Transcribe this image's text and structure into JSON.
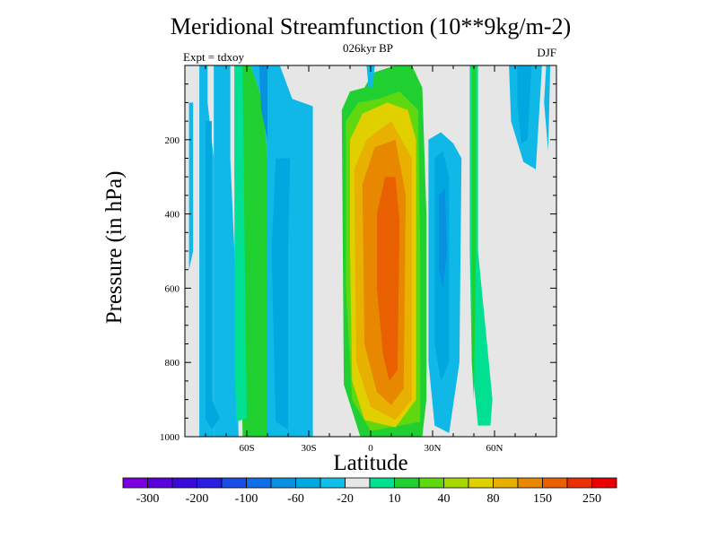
{
  "chart_data": {
    "type": "heatmap",
    "title": "Meridional Streamfunction (10**9kg/m-2)",
    "subtitle": "026kyr BP",
    "left_annotation": "Expt = tdxoy",
    "right_annotation": "DJF",
    "xlabel": "Latitude",
    "ylabel": "Pressure (in hPa)",
    "x_range": [
      -90,
      90
    ],
    "y_range": [
      0,
      1000
    ],
    "y_reversed": true,
    "x_ticks": [
      {
        "value": -60,
        "label": "60S"
      },
      {
        "value": -30,
        "label": "30S"
      },
      {
        "value": 0,
        "label": "0"
      },
      {
        "value": 30,
        "label": "30N"
      },
      {
        "value": 60,
        "label": "60N"
      }
    ],
    "y_ticks": [
      {
        "value": 200,
        "label": "200"
      },
      {
        "value": 400,
        "label": "400"
      },
      {
        "value": 600,
        "label": "600"
      },
      {
        "value": 800,
        "label": "800"
      },
      {
        "value": 1000,
        "label": "1000"
      }
    ],
    "background_color": "#e6e6e6",
    "colorbar": {
      "colors": [
        "#7b00e0",
        "#5a00d8",
        "#3a0ad8",
        "#2a1ee0",
        "#1a4ee6",
        "#0f6fe6",
        "#0a90e0",
        "#00a8e0",
        "#10c0e8",
        "#e6e6e6",
        "#00e090",
        "#20d030",
        "#60d810",
        "#a8d800",
        "#e0d000",
        "#e8b000",
        "#e88800",
        "#e86000",
        "#e83000",
        "#e80000"
      ],
      "labels": [
        {
          "after_box": 1,
          "text": "-300"
        },
        {
          "after_box": 3,
          "text": "-200"
        },
        {
          "after_box": 5,
          "text": "-100"
        },
        {
          "after_box": 7,
          "text": "-60"
        },
        {
          "after_box": 9,
          "text": "-20"
        },
        {
          "after_box": 11,
          "text": "10"
        },
        {
          "after_box": 13,
          "text": "40"
        },
        {
          "after_box": 15,
          "text": "80"
        },
        {
          "after_box": 17,
          "text": "150"
        },
        {
          "after_box": 19,
          "text": "250"
        }
      ]
    },
    "contour_bands": [
      {
        "color": "#10b8e8",
        "points": [
          [
            -83,
            0
          ],
          [
            -79,
            0
          ],
          [
            -79,
            100
          ],
          [
            -76,
            250
          ],
          [
            -76,
            1000
          ],
          [
            -83,
            1000
          ]
        ]
      },
      {
        "color": "#10b8e8",
        "points": [
          [
            -76,
            0
          ],
          [
            -68,
            0
          ],
          [
            -68,
            250
          ],
          [
            -66,
            500
          ],
          [
            -64,
            1000
          ],
          [
            -76,
            1000
          ]
        ]
      },
      {
        "color": "#00a8e0",
        "points": [
          [
            -80,
            150
          ],
          [
            -77,
            150
          ],
          [
            -77,
            900
          ],
          [
            -73,
            950
          ],
          [
            -77,
            980
          ],
          [
            -80,
            950
          ]
        ]
      },
      {
        "color": "#e6e6e6",
        "points": [
          [
            -88,
            20
          ],
          [
            -84,
            20
          ],
          [
            -84,
            650
          ],
          [
            -88,
            680
          ]
        ]
      },
      {
        "color": "#10b8e8",
        "points": [
          [
            -88,
            100
          ],
          [
            -86,
            100
          ],
          [
            -86,
            500
          ],
          [
            -88,
            550
          ]
        ]
      },
      {
        "color": "#20d030",
        "points": [
          [
            -66,
            0
          ],
          [
            -58,
            0
          ],
          [
            -52,
            100
          ],
          [
            -50,
            250
          ],
          [
            -50,
            1000
          ],
          [
            -62,
            1000
          ],
          [
            -63,
            750
          ],
          [
            -66,
            300
          ]
        ]
      },
      {
        "color": "#00e090",
        "points": [
          [
            -66,
            0
          ],
          [
            -62,
            0
          ],
          [
            -61,
            500
          ],
          [
            -60,
            950
          ],
          [
            -65,
            960
          ],
          [
            -66,
            800
          ]
        ]
      },
      {
        "color": "#10b8e8",
        "points": [
          [
            -58,
            0
          ],
          [
            -44,
            0
          ],
          [
            -38,
            90
          ],
          [
            -28,
            110
          ],
          [
            -28,
            1000
          ],
          [
            -50,
            1000
          ],
          [
            -50,
            250
          ],
          [
            -52,
            100
          ]
        ]
      },
      {
        "color": "#00a8e0",
        "points": [
          [
            -46,
            250
          ],
          [
            -39,
            250
          ],
          [
            -40,
            500
          ],
          [
            -40,
            980
          ],
          [
            -46,
            960
          ],
          [
            -48,
            500
          ]
        ]
      },
      {
        "color": "#0a90e0",
        "points": [
          [
            -54,
            0
          ],
          [
            -50,
            0
          ],
          [
            -50,
            200
          ],
          [
            -53,
            120
          ]
        ]
      },
      {
        "color": "#10b8e8",
        "points": [
          [
            -36,
            300
          ],
          [
            -30,
            300
          ],
          [
            -30,
            900
          ],
          [
            -36,
            880
          ]
        ]
      },
      {
        "color": "#20d030",
        "points": [
          [
            -14,
            120
          ],
          [
            -10,
            70
          ],
          [
            -3,
            60
          ],
          [
            1,
            20
          ],
          [
            12,
            0
          ],
          [
            20,
            0
          ],
          [
            25,
            60
          ],
          [
            27,
            400
          ],
          [
            27,
            900
          ],
          [
            25,
            1000
          ],
          [
            -5,
            1000
          ],
          [
            -13,
            860
          ]
        ]
      },
      {
        "color": "#60d810",
        "points": [
          [
            -12,
            150
          ],
          [
            -6,
            100
          ],
          [
            4,
            90
          ],
          [
            14,
            70
          ],
          [
            23,
            120
          ],
          [
            24,
            500
          ],
          [
            24,
            960
          ],
          [
            0,
            985
          ],
          [
            -9,
            900
          ],
          [
            -12,
            600
          ]
        ]
      },
      {
        "color": "#e0d000",
        "points": [
          [
            -10,
            200
          ],
          [
            -4,
            130
          ],
          [
            8,
            100
          ],
          [
            18,
            120
          ],
          [
            22,
            200
          ],
          [
            22,
            900
          ],
          [
            12,
            975
          ],
          [
            -3,
            955
          ],
          [
            -9,
            850
          ],
          [
            -10,
            500
          ]
        ]
      },
      {
        "color": "#e8b000",
        "points": [
          [
            -8,
            280
          ],
          [
            -2,
            200
          ],
          [
            10,
            150
          ],
          [
            20,
            250
          ],
          [
            20,
            900
          ],
          [
            12,
            955
          ],
          [
            0,
            920
          ],
          [
            -7,
            800
          ]
        ]
      },
      {
        "color": "#e88800",
        "points": [
          [
            -4,
            320
          ],
          [
            2,
            220
          ],
          [
            12,
            200
          ],
          [
            17,
            350
          ],
          [
            16,
            870
          ],
          [
            10,
            915
          ],
          [
            3,
            880
          ],
          [
            -3,
            750
          ]
        ]
      },
      {
        "color": "#e86000",
        "points": [
          [
            3,
            400
          ],
          [
            7,
            300
          ],
          [
            12,
            300
          ],
          [
            14,
            420
          ],
          [
            13,
            820
          ],
          [
            9,
            850
          ],
          [
            6,
            780
          ],
          [
            3,
            600
          ]
        ]
      },
      {
        "color": "#10b8e8",
        "points": [
          [
            28,
            200
          ],
          [
            34,
            180
          ],
          [
            40,
            210
          ],
          [
            44,
            250
          ],
          [
            43,
            800
          ],
          [
            38,
            990
          ],
          [
            31,
            970
          ],
          [
            28,
            800
          ]
        ]
      },
      {
        "color": "#00a8e0",
        "points": [
          [
            31,
            250
          ],
          [
            35,
            230
          ],
          [
            38,
            300
          ],
          [
            38,
            800
          ],
          [
            34,
            850
          ],
          [
            31,
            750
          ]
        ]
      },
      {
        "color": "#0a90e0",
        "points": [
          [
            33,
            350
          ],
          [
            36,
            330
          ],
          [
            37,
            500
          ],
          [
            35,
            600
          ],
          [
            33,
            550
          ]
        ]
      },
      {
        "color": "#00e090",
        "points": [
          [
            48,
            0
          ],
          [
            52,
            0
          ],
          [
            52,
            500
          ],
          [
            59,
            900
          ],
          [
            58,
            970
          ],
          [
            52,
            970
          ],
          [
            49,
            800
          ],
          [
            48,
            500
          ]
        ]
      },
      {
        "color": "#20d030",
        "points": [
          [
            49,
            0
          ],
          [
            51,
            0
          ],
          [
            51,
            500
          ],
          [
            50,
            900
          ],
          [
            49,
            800
          ]
        ]
      },
      {
        "color": "#10b8e8",
        "points": [
          [
            67,
            0
          ],
          [
            83,
            0
          ],
          [
            80,
            280
          ],
          [
            74,
            260
          ],
          [
            68,
            150
          ]
        ]
      },
      {
        "color": "#00a8e0",
        "points": [
          [
            71,
            0
          ],
          [
            78,
            0
          ],
          [
            76,
            200
          ],
          [
            73,
            210
          ],
          [
            71,
            100
          ]
        ]
      },
      {
        "color": "#10b8e8",
        "points": [
          [
            85,
            0
          ],
          [
            87,
            0
          ],
          [
            86,
            230
          ],
          [
            84,
            100
          ]
        ]
      },
      {
        "color": "#10b8e8",
        "points": [
          [
            -2,
            0
          ],
          [
            2,
            0
          ],
          [
            1,
            60
          ],
          [
            -1,
            60
          ]
        ]
      }
    ]
  }
}
